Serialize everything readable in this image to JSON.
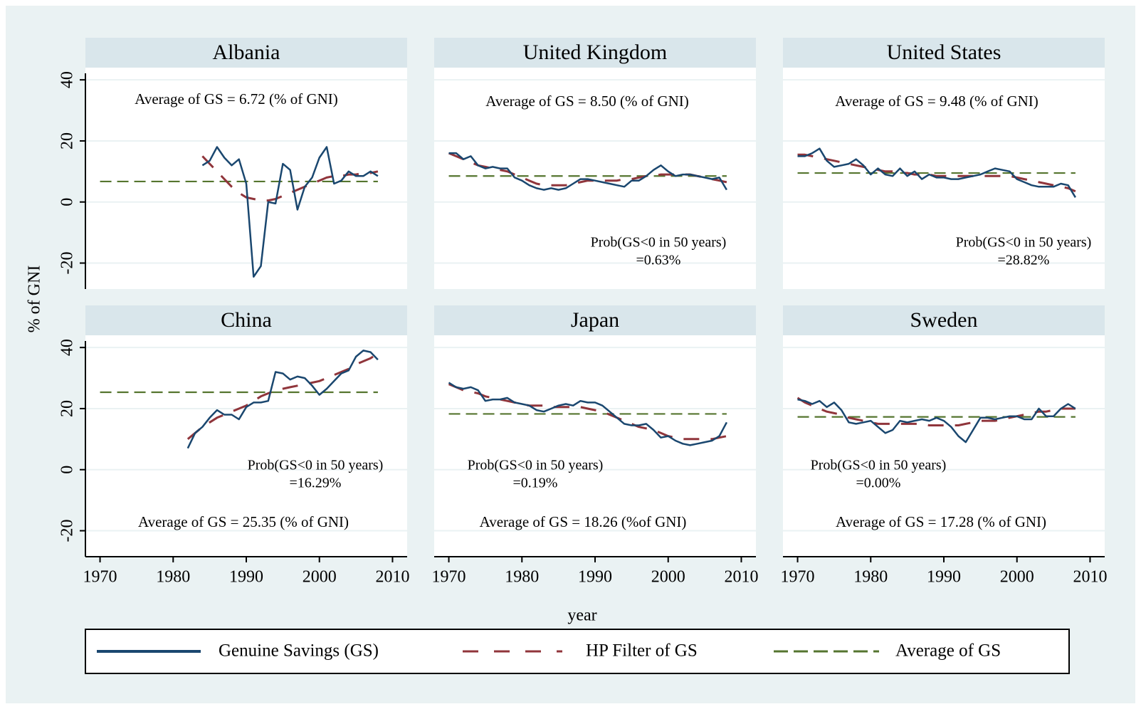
{
  "chart_data": {
    "type": "line",
    "xlabel": "year",
    "ylabel": "% of GNI",
    "xlim": [
      1968,
      2012
    ],
    "xticks": [
      1970,
      1980,
      1990,
      2000,
      2010
    ],
    "ylim": [
      -28.5,
      44
    ],
    "yticks": [
      -20,
      0,
      20,
      40
    ],
    "grid": true,
    "series": [
      {
        "name": "Genuine Savings (GS)",
        "color": "#1a476f"
      },
      {
        "name": "HP Filter of GS",
        "color": "#90353b"
      },
      {
        "name": "Average of GS",
        "color": "#55752f"
      }
    ],
    "x": [
      1970,
      1971,
      1972,
      1973,
      1974,
      1975,
      1976,
      1977,
      1978,
      1979,
      1980,
      1981,
      1982,
      1983,
      1984,
      1985,
      1986,
      1987,
      1988,
      1989,
      1990,
      1991,
      1992,
      1993,
      1994,
      1995,
      1996,
      1997,
      1998,
      1999,
      2000,
      2001,
      2002,
      2003,
      2004,
      2005,
      2006,
      2007,
      2008
    ],
    "panels": [
      {
        "title": "Albania",
        "gs": [
          null,
          null,
          null,
          null,
          null,
          null,
          null,
          null,
          null,
          null,
          null,
          null,
          null,
          null,
          12,
          13.5,
          18,
          14.5,
          12,
          14,
          6,
          -24.5,
          -21,
          0,
          -0.5,
          12.5,
          10.5,
          -2.5,
          5,
          8,
          14.5,
          18,
          6,
          7,
          10,
          8.5,
          8.5,
          10,
          8.5
        ],
        "hp": [
          null,
          null,
          null,
          null,
          null,
          null,
          null,
          null,
          null,
          null,
          null,
          null,
          null,
          null,
          15,
          12.5,
          10,
          7.5,
          5,
          3,
          1.5,
          1,
          0.5,
          0.5,
          1,
          2,
          3,
          4,
          5,
          6,
          7,
          8,
          8.5,
          8.5,
          9,
          9,
          9.5,
          9.5,
          10
        ],
        "average": 6.72,
        "average_label": "Average of GS = 6.72 (% of GNI)"
      },
      {
        "title": "United Kingdom",
        "gs": [
          16,
          16,
          14,
          15,
          12,
          11,
          11.5,
          11,
          11,
          8,
          7,
          5.5,
          4.5,
          4,
          4.5,
          4,
          4.5,
          6,
          7.5,
          7.5,
          7,
          6.5,
          6,
          5.5,
          5,
          7,
          7,
          8.5,
          10.5,
          12,
          10,
          8.5,
          9,
          9,
          8.5,
          8,
          7.5,
          8,
          4
        ],
        "hp": [
          16,
          15,
          14,
          13,
          12,
          11.5,
          11,
          10.5,
          10,
          9,
          8,
          7,
          6,
          5.5,
          5.5,
          5.5,
          5.5,
          6,
          6.5,
          7,
          7,
          7,
          7,
          7,
          7.5,
          7.5,
          8,
          8.5,
          8.5,
          9,
          9,
          9,
          9,
          9,
          8.5,
          8,
          7.5,
          7,
          6.5
        ],
        "average": 8.5,
        "average_label": "Average of GS = 8.50 (% of GNI)",
        "prob_label": [
          "Prob(GS<0 in 50 years)",
          "=0.63%"
        ]
      },
      {
        "title": "United States",
        "gs": [
          15,
          15,
          16,
          17.5,
          13.5,
          11.5,
          12,
          12.5,
          14,
          12,
          9,
          11,
          9,
          8.5,
          11,
          8.5,
          10,
          7.5,
          9,
          8,
          8,
          7.5,
          7.5,
          8,
          8.5,
          9,
          10,
          11,
          10.5,
          10,
          7.5,
          6.5,
          5.5,
          5,
          5,
          5,
          6,
          5.5,
          1.5
        ],
        "hp": [
          15.5,
          15.5,
          15,
          14.5,
          14,
          13.5,
          13,
          12.5,
          12,
          11.5,
          11,
          10.5,
          10,
          10,
          9.5,
          9.5,
          9,
          9,
          9,
          8.5,
          8.5,
          8.5,
          8.5,
          8.5,
          8.5,
          8.5,
          8.5,
          8.5,
          8.5,
          8.5,
          8,
          7.5,
          7,
          6.5,
          6,
          5.5,
          5,
          4.5,
          3.5
        ],
        "average": 9.48,
        "average_label": "Average of GS = 9.48 (% of GNI)",
        "prob_label": [
          "Prob(GS<0 in 50 years)",
          "=28.82%"
        ]
      },
      {
        "title": "China",
        "gs": [
          null,
          null,
          null,
          null,
          null,
          null,
          null,
          null,
          null,
          null,
          null,
          null,
          7,
          12,
          14,
          17,
          19.5,
          18,
          18,
          16.5,
          20.5,
          22,
          22,
          22.5,
          32,
          31.5,
          29.5,
          30.5,
          30,
          27.5,
          24.5,
          26.5,
          29,
          31.5,
          32.5,
          37,
          39,
          38.5,
          36
        ],
        "hp": [
          null,
          null,
          null,
          null,
          null,
          null,
          null,
          null,
          null,
          null,
          null,
          null,
          10,
          12,
          14,
          15.5,
          17,
          18,
          19,
          20,
          21,
          22.5,
          24,
          25,
          26,
          26.5,
          27,
          27.5,
          28,
          28.5,
          29,
          30,
          31,
          32,
          33,
          34.5,
          35.5,
          36.5,
          38
        ],
        "average": 25.35,
        "average_label": "Average of GS = 25.35 (% of GNI)",
        "prob_label": [
          "Prob(GS<0 in 50 years)",
          "=16.29%"
        ]
      },
      {
        "title": "Japan",
        "gs": [
          28.5,
          27,
          26.5,
          27,
          26,
          22.5,
          23,
          23,
          23.5,
          22,
          21.5,
          21,
          19.5,
          19,
          20,
          21,
          21.5,
          21,
          22.5,
          22,
          22,
          21,
          19,
          17,
          15,
          14.5,
          14.5,
          15,
          13,
          10.5,
          11,
          9.5,
          8.5,
          8,
          8.5,
          9,
          9.5,
          11,
          15.5
        ],
        "hp": [
          28,
          27,
          26,
          25.5,
          25,
          24,
          23.5,
          23,
          22.5,
          22,
          21.5,
          21,
          21,
          21,
          20.5,
          20.5,
          20.5,
          20.5,
          20.5,
          20,
          19.5,
          19,
          18,
          17,
          16,
          15,
          14,
          13.5,
          13,
          12,
          11,
          10.5,
          10,
          10,
          10,
          10,
          10,
          10.5,
          11
        ],
        "average": 18.26,
        "average_label": "Average of GS = 18.26 (%of GNI)",
        "prob_label": [
          "Prob(GS<0 in 50 years)",
          "=0.19%"
        ]
      },
      {
        "title": "Sweden",
        "gs": [
          23,
          22.5,
          21.5,
          22.5,
          20.5,
          22,
          19.5,
          15.5,
          15,
          15.5,
          16,
          14,
          12,
          13,
          16,
          15.5,
          16,
          16.5,
          16,
          17,
          16,
          14,
          11,
          9,
          13,
          17,
          17,
          16.5,
          17,
          17.5,
          17.5,
          16.5,
          16.5,
          20,
          17.5,
          17.5,
          20,
          21.5,
          20
        ],
        "hp": [
          23.5,
          22,
          21,
          20,
          19,
          18.5,
          18,
          17,
          16.5,
          16,
          15.5,
          15,
          15,
          15,
          15,
          15,
          15,
          15,
          14.5,
          14.5,
          14.5,
          14.5,
          14.5,
          15,
          15.5,
          16,
          16,
          16,
          16.5,
          17,
          17.5,
          18,
          18.5,
          19,
          19,
          19.5,
          20,
          20,
          20
        ],
        "average": 17.28,
        "average_label": "Average of GS = 17.28 (% of GNI)",
        "prob_label": [
          "Prob(GS<0 in 50 years)",
          "=0.00%"
        ]
      }
    ]
  }
}
